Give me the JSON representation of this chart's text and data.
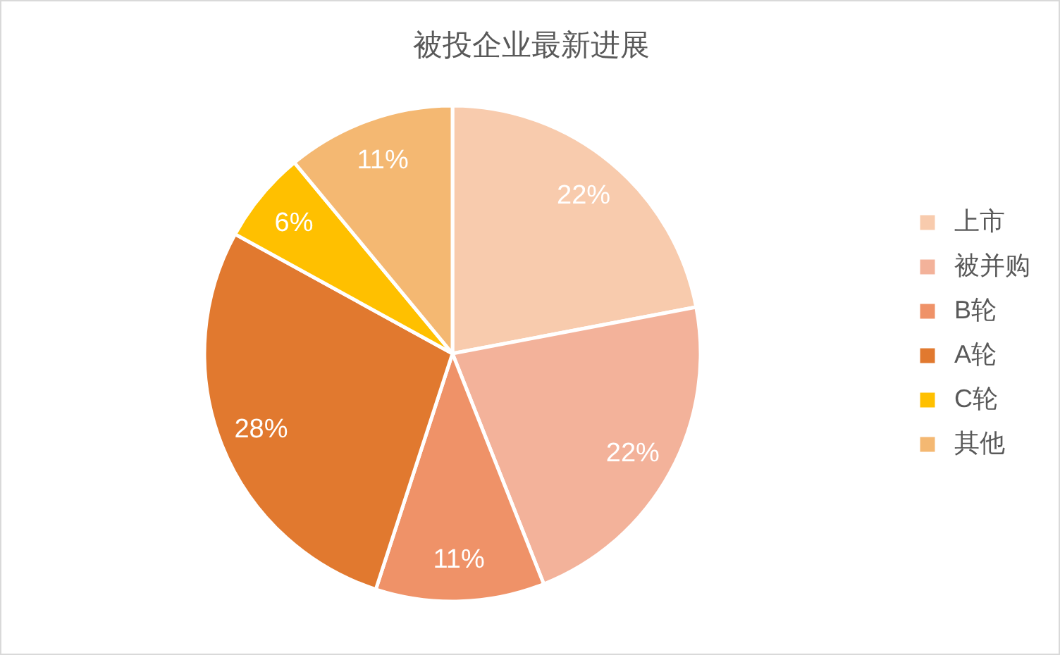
{
  "chart_data": {
    "type": "pie",
    "title": "被投企业最新进展",
    "categories": [
      "上市",
      "被并购",
      "B轮",
      "A轮",
      "C轮",
      "其他"
    ],
    "values": [
      22,
      22,
      11,
      28,
      6,
      11
    ],
    "value_labels": [
      "22%",
      "22%",
      "11%",
      "28%",
      "6%",
      "11%"
    ],
    "colors": [
      "#f8cbad",
      "#f3b29a",
      "#ef9268",
      "#e1792f",
      "#ffc000",
      "#f4b872"
    ],
    "legend": "right"
  }
}
